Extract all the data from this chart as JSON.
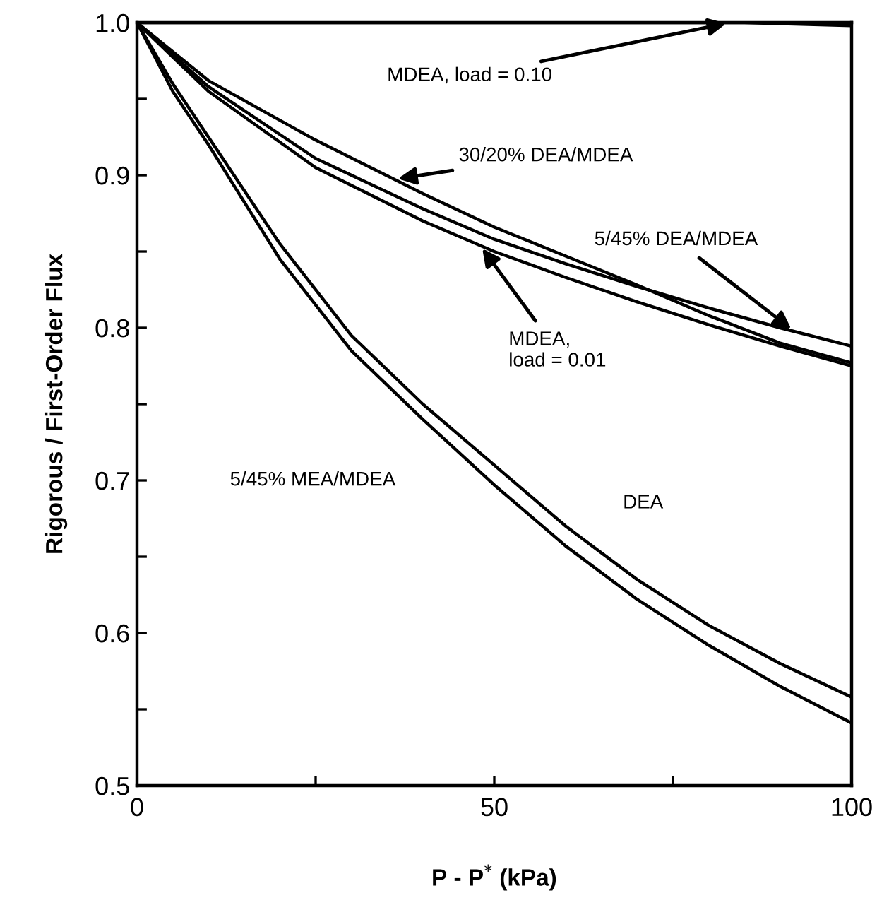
{
  "chart_data": {
    "type": "line",
    "xlabel": "P - P$^{*}$ (kPa)",
    "ylabel": "Rigorous / First-Order Flux",
    "xlim": [
      0,
      100
    ],
    "ylim": [
      0.5,
      1.0
    ],
    "xticks": [
      0,
      {
        "value": 25,
        "label": null
      },
      50,
      {
        "value": 75,
        "label": null
      },
      100
    ],
    "yticks": [
      0.5,
      {
        "value": 0.55,
        "label": null
      },
      0.6,
      {
        "value": 0.65,
        "label": null
      },
      0.7,
      {
        "value": 0.75,
        "label": null
      },
      0.8,
      {
        "value": 0.85,
        "label": null
      },
      0.9,
      {
        "value": 0.95,
        "label": null
      },
      {
        "value": 1.0,
        "label": "1.0"
      }
    ],
    "grid": false,
    "legend": false,
    "marker": "none",
    "line_style": "solid",
    "series": [
      {
        "name": "MDEA, load = 0.10",
        "color": "#000000",
        "x": [
          0,
          50,
          85,
          100
        ],
        "values": [
          1.0,
          1.0,
          1.0,
          0.998
        ]
      },
      {
        "name": "30/20% DEA/MDEA",
        "color": "#000000",
        "x": [
          0,
          10,
          25,
          40,
          50,
          60,
          70,
          80,
          90,
          100
        ],
        "values": [
          1.0,
          0.962,
          0.923,
          0.888,
          0.866,
          0.847,
          0.828,
          0.808,
          0.79,
          0.777
        ]
      },
      {
        "name": "5/45% DEA/MDEA",
        "color": "#000000",
        "x": [
          0,
          10,
          25,
          40,
          50,
          60,
          70,
          80,
          90,
          100
        ],
        "values": [
          1.0,
          0.958,
          0.911,
          0.878,
          0.858,
          0.842,
          0.827,
          0.813,
          0.8,
          0.788
        ]
      },
      {
        "name": "MDEA,\nload = 0.01",
        "color": "#000000",
        "x": [
          0,
          10,
          25,
          40,
          50,
          60,
          70,
          80,
          90,
          100
        ],
        "values": [
          1.0,
          0.955,
          0.905,
          0.87,
          0.85,
          0.833,
          0.817,
          0.802,
          0.788,
          0.775
        ]
      },
      {
        "name": "5/45% MEA/MDEA",
        "color": "#000000",
        "x": [
          0,
          5,
          10,
          20,
          30,
          40,
          50,
          60,
          70,
          80,
          90,
          100
        ],
        "values": [
          1.0,
          0.955,
          0.92,
          0.845,
          0.785,
          0.74,
          0.697,
          0.657,
          0.622,
          0.592,
          0.565,
          0.541
        ]
      },
      {
        "name": "DEA",
        "color": "#000000",
        "x": [
          0,
          5,
          10,
          20,
          30,
          40,
          50,
          60,
          70,
          80,
          90,
          100
        ],
        "values": [
          1.0,
          0.96,
          0.925,
          0.855,
          0.795,
          0.75,
          0.71,
          0.67,
          0.635,
          0.605,
          0.58,
          0.558
        ]
      }
    ]
  }
}
